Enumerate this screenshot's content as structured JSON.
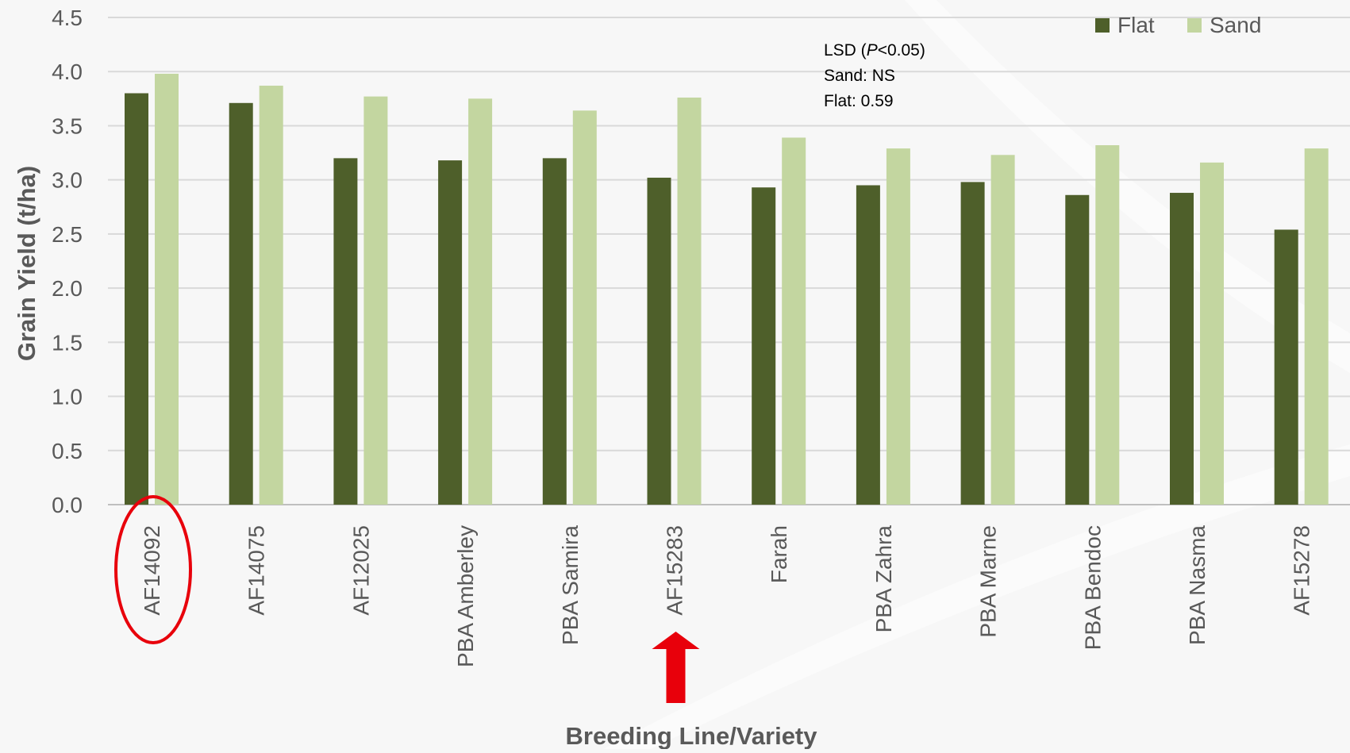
{
  "chart_data": {
    "type": "bar",
    "ylabel": "Grain Yield (t/ha)",
    "xlabel": "Breeding Line/Variety",
    "ylim": [
      0,
      4.5
    ],
    "ytick_step": 0.5,
    "grid": "horizontal",
    "legend_position": "top-right",
    "categories": [
      "AF14092",
      "AF14075",
      "AF12025",
      "PBA Amberley",
      "PBA Samira",
      "AF15283",
      "Farah",
      "PBA Zahra",
      "PBA Marne",
      "PBA Bendoc",
      "PBA Nasma",
      "AF15278"
    ],
    "series": [
      {
        "name": "Flat",
        "color": "#4e5f2a",
        "values": [
          3.8,
          3.71,
          3.2,
          3.18,
          3.2,
          3.02,
          2.93,
          2.95,
          2.98,
          2.86,
          2.88,
          2.54
        ]
      },
      {
        "name": "Sand",
        "color": "#c3d6a0",
        "values": [
          3.98,
          3.87,
          3.77,
          3.75,
          3.64,
          3.76,
          3.39,
          3.29,
          3.23,
          3.32,
          3.16,
          3.29
        ]
      }
    ],
    "annotation": {
      "line1_pre": "LSD (",
      "line1_italic": "P",
      "line1_post": "<0.05)",
      "line2": "Sand: NS",
      "line3": "Flat: 0.59"
    },
    "highlight": {
      "circled_category": "AF14092",
      "arrow_category": "AF15283",
      "color": "#e8000b"
    }
  }
}
